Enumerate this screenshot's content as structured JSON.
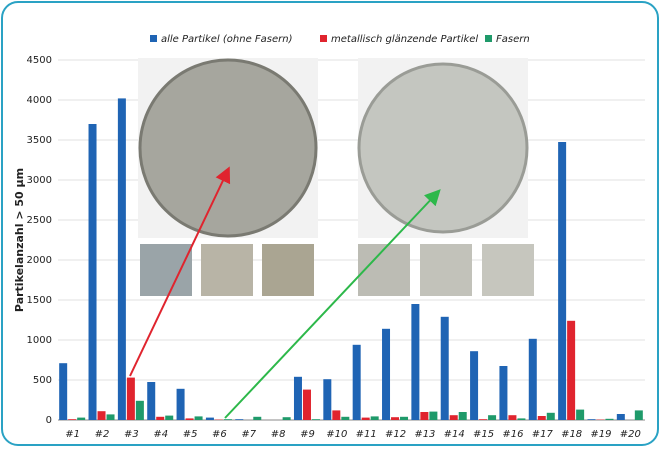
{
  "chart_data": {
    "type": "bar",
    "y_label": "Partikelanzahl > 50 µm",
    "categories": [
      "#1",
      "#2",
      "#3",
      "#4",
      "#5",
      "#6",
      "#7",
      "#8",
      "#9",
      "#10",
      "#11",
      "#12",
      "#13",
      "#14",
      "#15",
      "#16",
      "#17",
      "#18",
      "#19",
      "#20"
    ],
    "series": [
      {
        "name": "alle Partikel (ohne Fasern)",
        "color": "#1f64b4",
        "values": [
          710,
          3700,
          4020,
          475,
          390,
          30,
          10,
          0,
          540,
          510,
          940,
          1140,
          1450,
          1290,
          860,
          675,
          1015,
          3475,
          10,
          75
        ]
      },
      {
        "name": "metallisch glänzende Partikel",
        "color": "#e0242e",
        "values": [
          10,
          110,
          530,
          40,
          20,
          5,
          0,
          0,
          380,
          120,
          30,
          35,
          100,
          60,
          10,
          60,
          50,
          1240,
          5,
          0
        ]
      },
      {
        "name": "Fasern",
        "color": "#1f9a6a",
        "values": [
          30,
          70,
          240,
          55,
          45,
          10,
          40,
          35,
          10,
          40,
          45,
          40,
          105,
          100,
          60,
          20,
          90,
          130,
          15,
          120
        ]
      }
    ],
    "ylim": [
      0,
      4500
    ],
    "yticks": [
      0,
      500,
      1000,
      1500,
      2000,
      2500,
      3000,
      3500,
      4000,
      4500
    ],
    "grid": true,
    "legend": "top"
  }
}
